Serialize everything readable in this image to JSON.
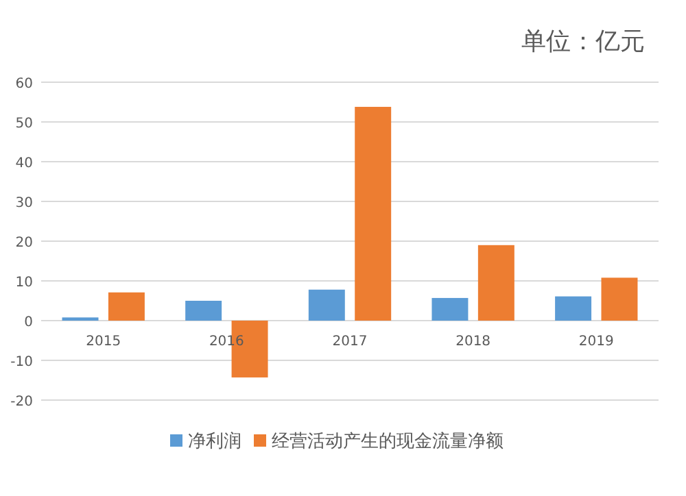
{
  "chart_data": {
    "type": "bar",
    "annotations": [
      "单位：亿元"
    ],
    "categories": [
      "2015",
      "2016",
      "2017",
      "2018",
      "2019"
    ],
    "series": [
      {
        "name": "净利润",
        "color": "#5b9bd5",
        "values": [
          0.8,
          5,
          7.8,
          5.7,
          6.1
        ]
      },
      {
        "name": "经营活动产生的现金流量净额",
        "color": "#ed7d31",
        "values": [
          7.1,
          -14.3,
          53.8,
          19,
          10.8
        ]
      }
    ],
    "ylim": [
      -20,
      60
    ],
    "yticks": [
      -20,
      -10,
      0,
      10,
      20,
      30,
      40,
      50,
      60
    ],
    "grid": "y",
    "legend": "bottom"
  }
}
